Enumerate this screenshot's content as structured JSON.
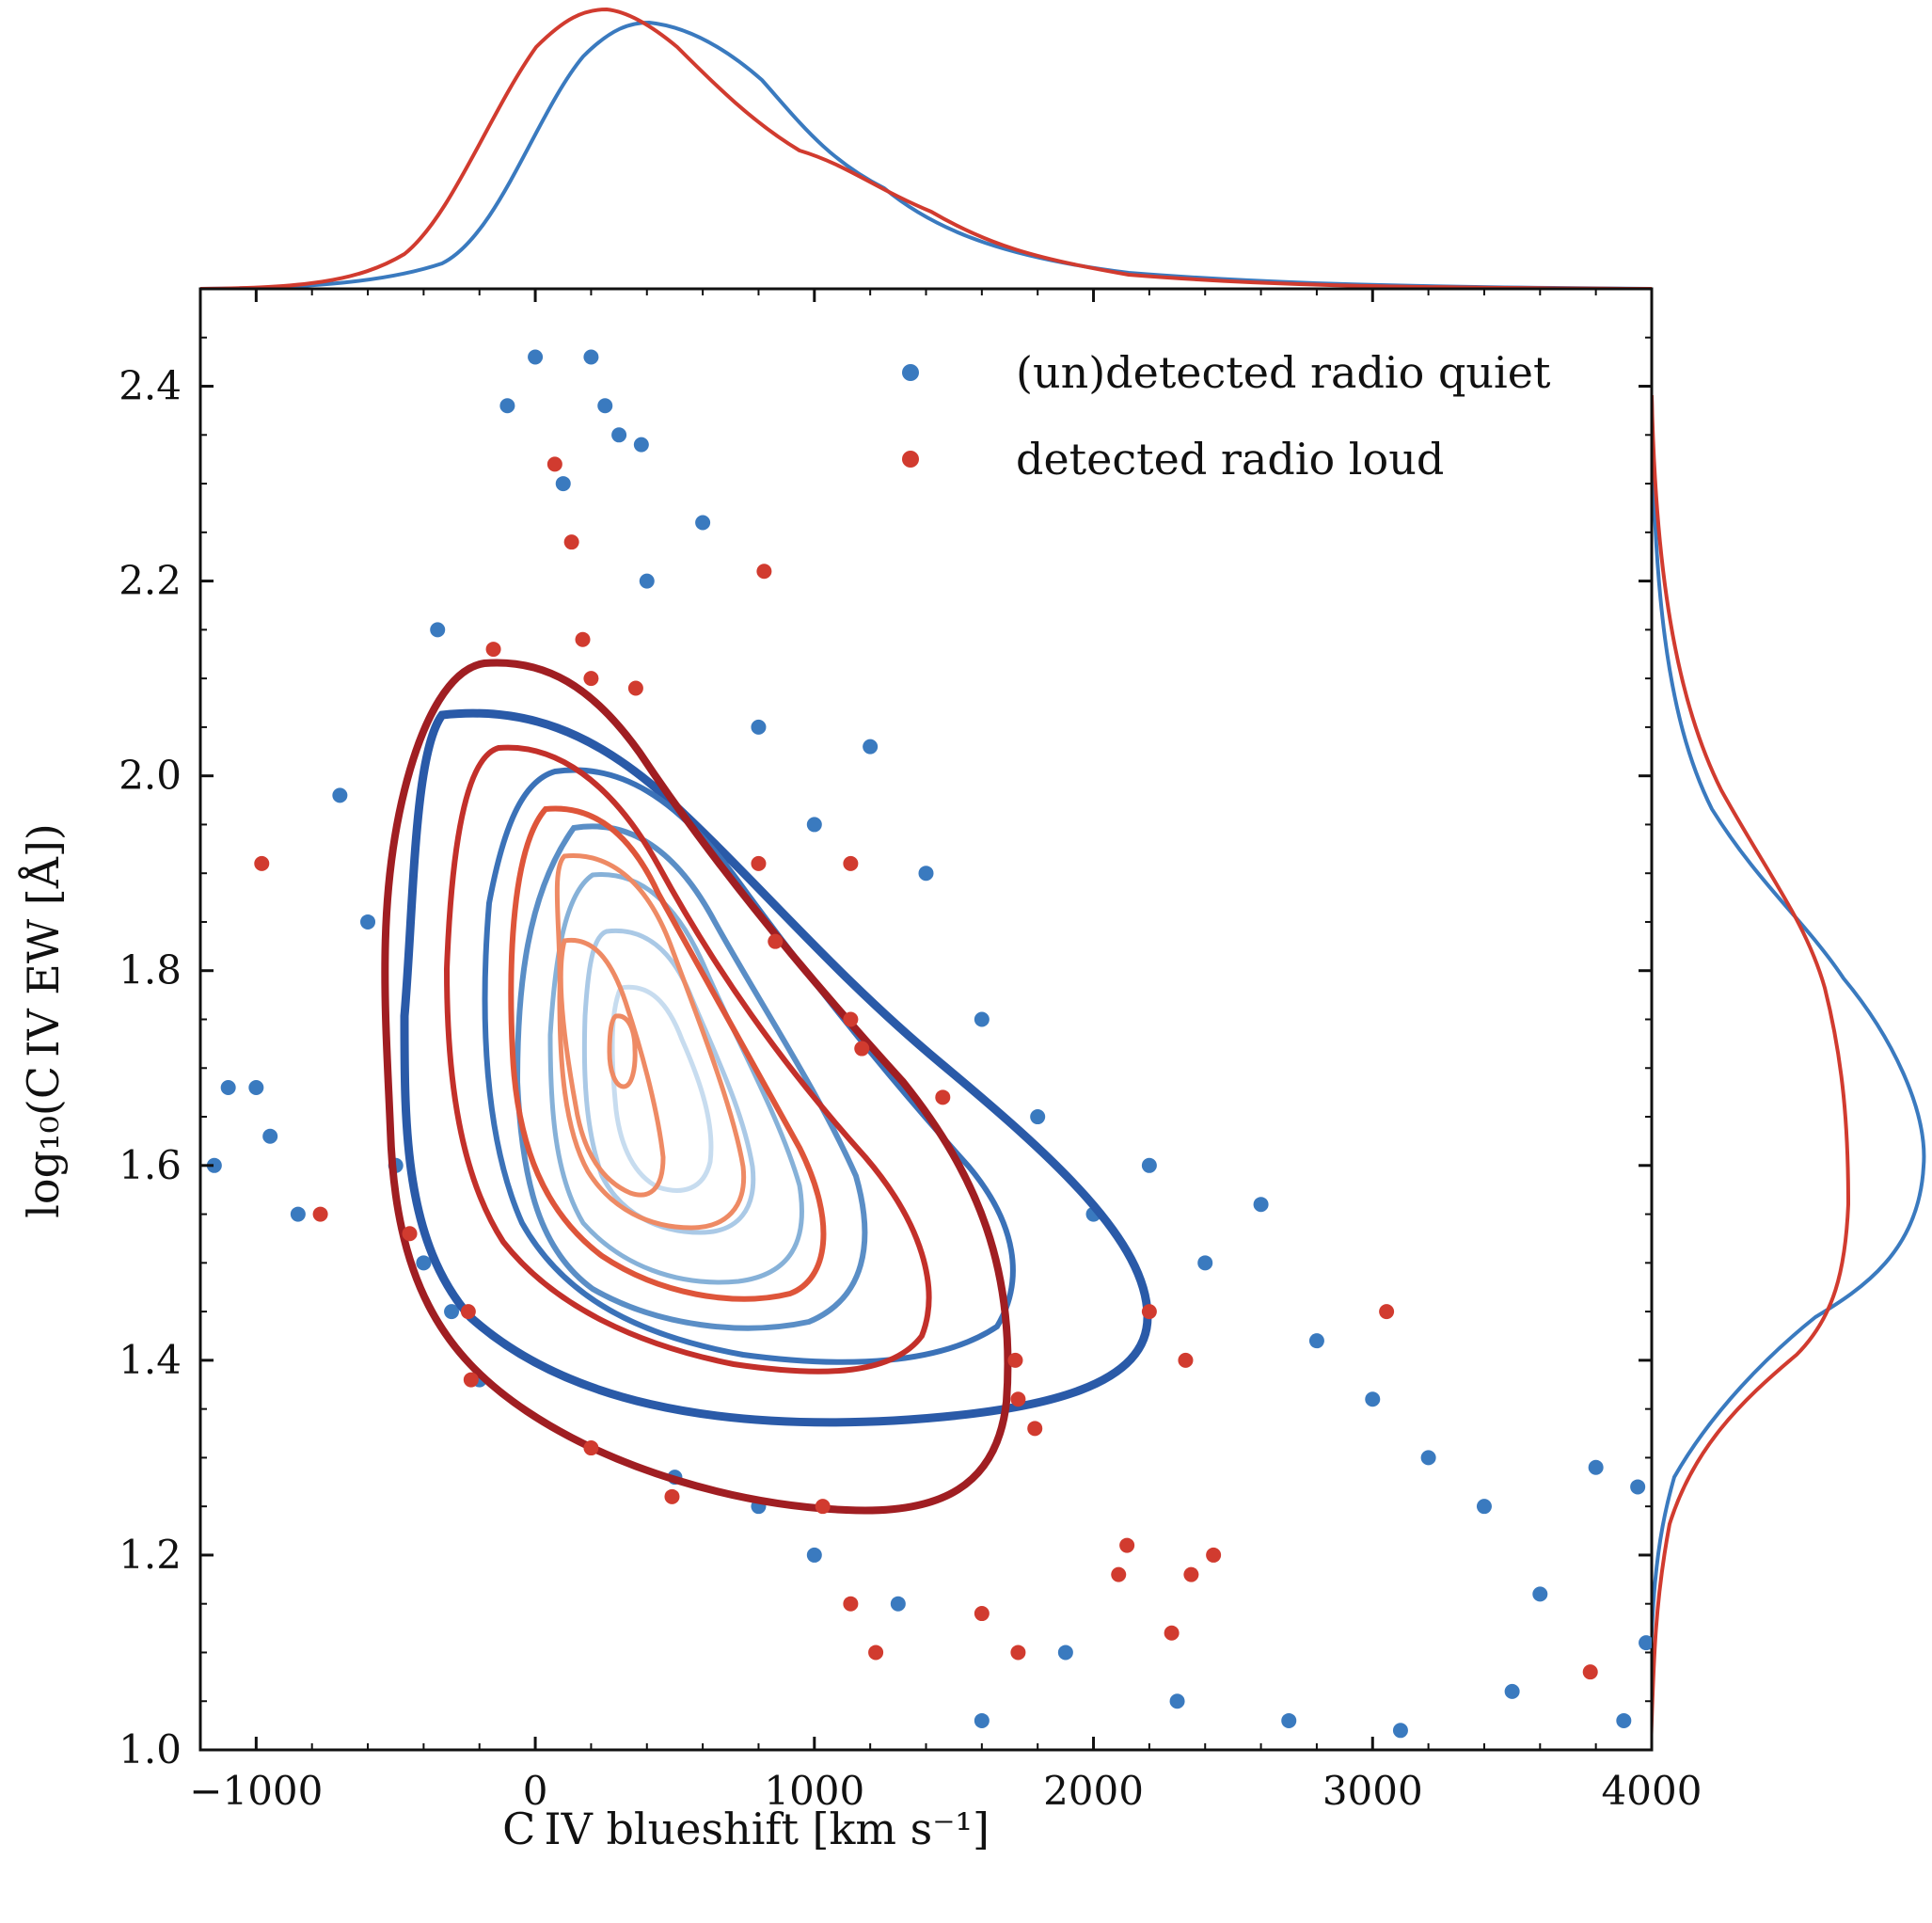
{
  "chart_data": {
    "type": "scatter",
    "xlabel": "C IV blueshift [km s⁻¹]",
    "ylabel": "log₁₀(C IV EW [Å])",
    "xlim": [
      -1200,
      4000
    ],
    "ylim": [
      1.0,
      2.5
    ],
    "x_ticks": [
      "−1000",
      "0",
      "1000",
      "2000",
      "3000",
      "4000"
    ],
    "x_tick_values": [
      -1000,
      0,
      1000,
      2000,
      3000,
      4000
    ],
    "y_ticks": [
      "1.0",
      "1.2",
      "1.4",
      "1.6",
      "1.8",
      "2.0",
      "2.2",
      "2.4"
    ],
    "y_tick_values": [
      1.0,
      1.2,
      1.4,
      1.6,
      1.8,
      2.0,
      2.2,
      2.4
    ],
    "grid": false,
    "legend_position": "top-right",
    "marginals": true,
    "colors": {
      "radio_quiet": "#3a7abf",
      "radio_loud": "#d13b2f",
      "contour_quiet": [
        "#2a5aa8",
        "#3b72b8",
        "#5a8ec6",
        "#86b1d8",
        "#aac9e6",
        "#c7dcef"
      ],
      "contour_loud": [
        "#a01e22",
        "#c3302a",
        "#de553a",
        "#ee8a64"
      ]
    },
    "series": [
      {
        "name": "(un)detected radio quiet",
        "marker": "circle",
        "sample_points": [
          [
            -1150,
            1.6
          ],
          [
            -1100,
            1.68
          ],
          [
            -1000,
            1.68
          ],
          [
            -950,
            1.63
          ],
          [
            -700,
            1.98
          ],
          [
            -850,
            1.55
          ],
          [
            -600,
            1.85
          ],
          [
            -500,
            1.6
          ],
          [
            -400,
            1.5
          ],
          [
            -350,
            2.15
          ],
          [
            -300,
            1.45
          ],
          [
            -200,
            1.38
          ],
          [
            -100,
            2.38
          ],
          [
            0,
            2.43
          ],
          [
            200,
            2.43
          ],
          [
            250,
            2.38
          ],
          [
            300,
            2.35
          ],
          [
            380,
            2.34
          ],
          [
            600,
            2.26
          ],
          [
            100,
            2.3
          ],
          [
            400,
            2.2
          ],
          [
            800,
            2.05
          ],
          [
            1000,
            1.95
          ],
          [
            1200,
            2.03
          ],
          [
            1400,
            1.9
          ],
          [
            1600,
            1.75
          ],
          [
            1800,
            1.65
          ],
          [
            2000,
            1.55
          ],
          [
            2200,
            1.6
          ],
          [
            2400,
            1.5
          ],
          [
            2600,
            1.56
          ],
          [
            2800,
            1.42
          ],
          [
            3000,
            1.36
          ],
          [
            3200,
            1.3
          ],
          [
            3400,
            1.25
          ],
          [
            3600,
            1.16
          ],
          [
            3800,
            1.29
          ],
          [
            3950,
            1.27
          ],
          [
            3980,
            1.11
          ],
          [
            3900,
            1.03
          ],
          [
            3500,
            1.06
          ],
          [
            3100,
            1.02
          ],
          [
            2700,
            1.03
          ],
          [
            2300,
            1.05
          ],
          [
            1900,
            1.1
          ],
          [
            1600,
            1.03
          ],
          [
            1300,
            1.15
          ],
          [
            1000,
            1.2
          ],
          [
            800,
            1.25
          ],
          [
            500,
            1.28
          ]
        ]
      },
      {
        "name": "detected radio loud",
        "marker": "circle",
        "points": [
          [
            -980,
            1.91
          ],
          [
            -770,
            1.55
          ],
          [
            -450,
            1.53
          ],
          [
            -240,
            1.45
          ],
          [
            -230,
            1.38
          ],
          [
            -150,
            2.13
          ],
          [
            70,
            2.32
          ],
          [
            130,
            2.24
          ],
          [
            170,
            2.14
          ],
          [
            200,
            2.1
          ],
          [
            360,
            2.09
          ],
          [
            820,
            2.21
          ],
          [
            800,
            1.91
          ],
          [
            1130,
            1.91
          ],
          [
            860,
            1.83
          ],
          [
            1130,
            1.75
          ],
          [
            1170,
            1.72
          ],
          [
            1460,
            1.67
          ],
          [
            200,
            1.31
          ],
          [
            490,
            1.26
          ],
          [
            1030,
            1.25
          ],
          [
            1130,
            1.15
          ],
          [
            1220,
            1.1
          ],
          [
            1600,
            1.14
          ],
          [
            1730,
            1.1
          ],
          [
            1720,
            1.4
          ],
          [
            1730,
            1.36
          ],
          [
            1790,
            1.33
          ],
          [
            2090,
            1.18
          ],
          [
            2120,
            1.21
          ],
          [
            2200,
            1.45
          ],
          [
            2330,
            1.4
          ],
          [
            2280,
            1.12
          ],
          [
            2350,
            1.18
          ],
          [
            2430,
            1.2
          ],
          [
            3050,
            1.45
          ],
          [
            3780,
            1.08
          ]
        ]
      }
    ]
  }
}
